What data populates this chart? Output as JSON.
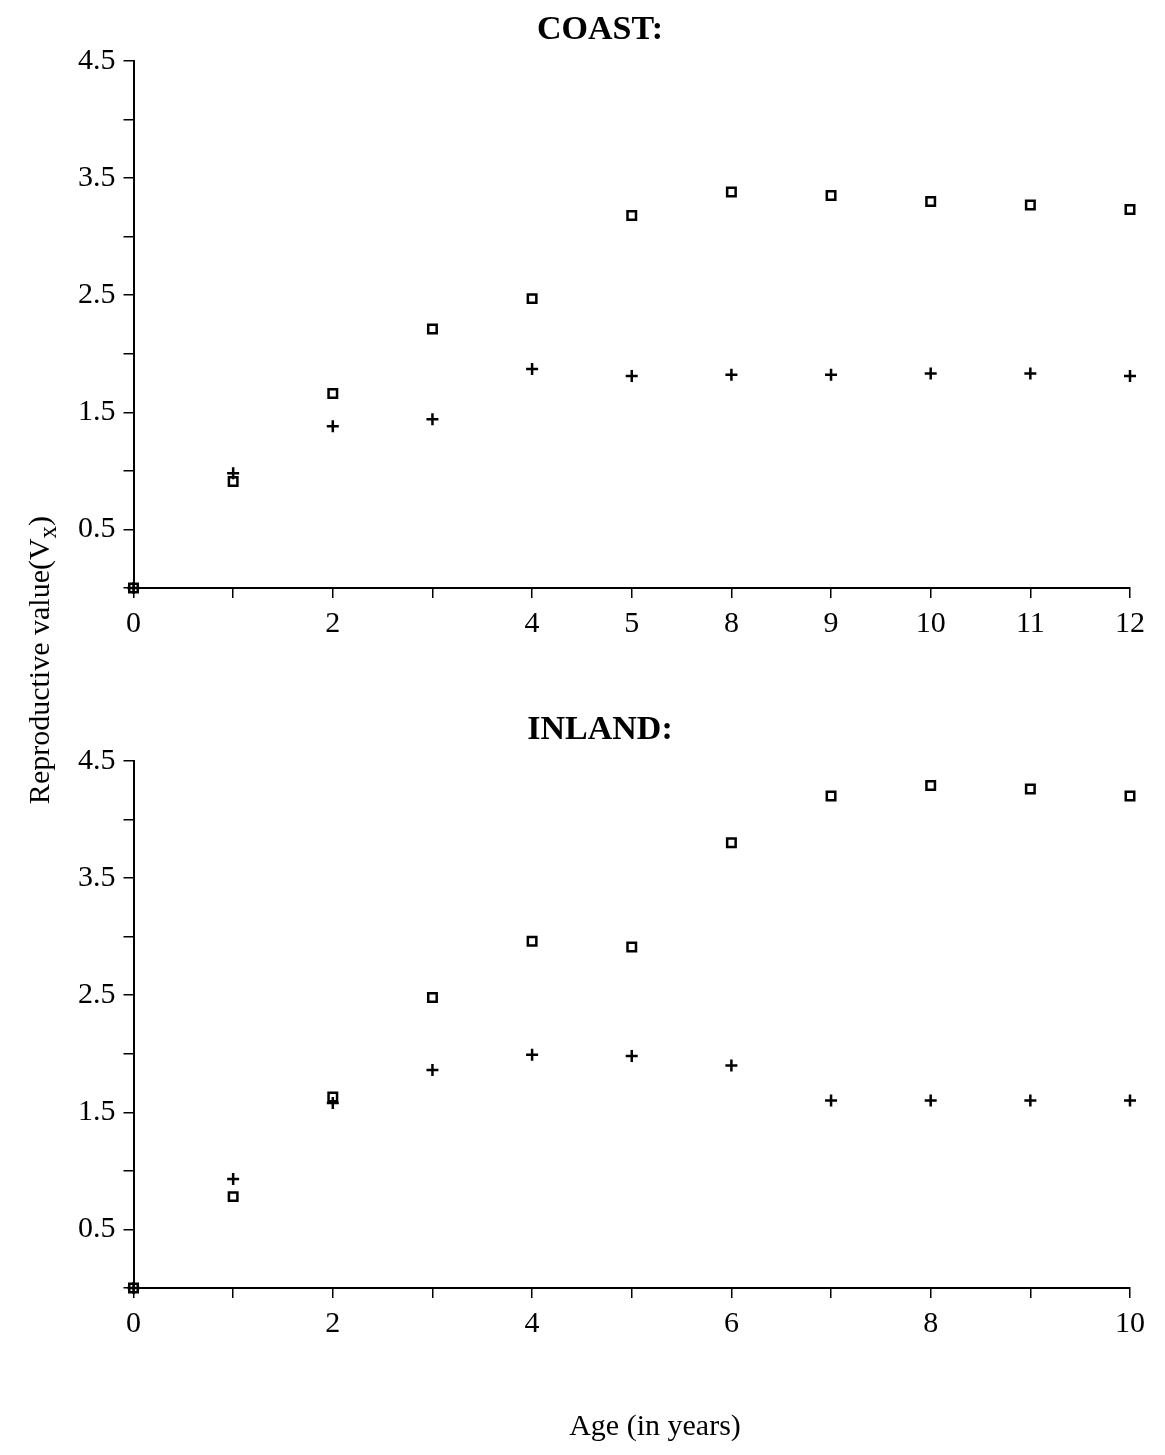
{
  "chart_data": [
    {
      "type": "scatter",
      "title": "COAST:",
      "ylabel": "Reproductive value(V$_{x}$)",
      "categories": [
        "0",
        null,
        "2",
        null,
        "4",
        "5",
        "8",
        "9",
        "10",
        "11",
        "12"
      ],
      "ylim": [
        0,
        4.5
      ],
      "yticks": [
        {
          "value": 0,
          "label": null
        },
        0.5,
        {
          "value": 1,
          "label": null
        },
        1.5,
        {
          "value": 2,
          "label": null
        },
        2.5,
        {
          "value": 3,
          "label": null
        },
        3.5,
        {
          "value": 4,
          "label": null
        },
        4.5
      ],
      "grid": false,
      "legend": false,
      "series": [
        {
          "color": "#000000",
          "marker": "square",
          "values": [
            0,
            0.91,
            1.66,
            2.21,
            2.47,
            3.18,
            3.38,
            3.35,
            3.3,
            3.27,
            3.23
          ]
        },
        {
          "color": "#000000",
          "marker": "cross",
          "values": [
            0,
            0.98,
            1.38,
            1.44,
            1.87,
            1.81,
            1.82,
            1.82,
            1.83,
            1.83,
            1.81
          ]
        }
      ]
    },
    {
      "type": "scatter",
      "title": "INLAND:",
      "xlabel": "Age (in years)",
      "x": [
        0,
        1,
        2,
        3,
        4,
        5,
        6,
        7,
        8,
        9,
        10
      ],
      "xlim": [
        0,
        10
      ],
      "xticks": [
        0,
        {
          "value": 1,
          "label": null
        },
        2,
        {
          "value": 3,
          "label": null
        },
        4,
        {
          "value": 5,
          "label": null
        },
        6,
        {
          "value": 7,
          "label": null
        },
        8,
        {
          "value": 9,
          "label": null
        },
        10
      ],
      "ylim": [
        0,
        4.5
      ],
      "yticks": [
        {
          "value": 0,
          "label": null
        },
        0.5,
        {
          "value": 1,
          "label": null
        },
        1.5,
        {
          "value": 2,
          "label": null
        },
        2.5,
        {
          "value": 3,
          "label": null
        },
        3.5,
        {
          "value": 4,
          "label": null
        },
        4.5
      ],
      "grid": false,
      "legend": false,
      "series": [
        {
          "color": "#000000",
          "marker": "square",
          "values": [
            0,
            0.78,
            1.63,
            2.48,
            2.96,
            2.91,
            3.8,
            4.2,
            4.29,
            4.26,
            4.2
          ]
        },
        {
          "color": "#000000",
          "marker": "cross",
          "values": [
            0,
            0.93,
            1.58,
            1.86,
            1.99,
            1.98,
            1.9,
            1.6,
            1.6,
            1.6,
            1.6
          ]
        }
      ]
    }
  ]
}
